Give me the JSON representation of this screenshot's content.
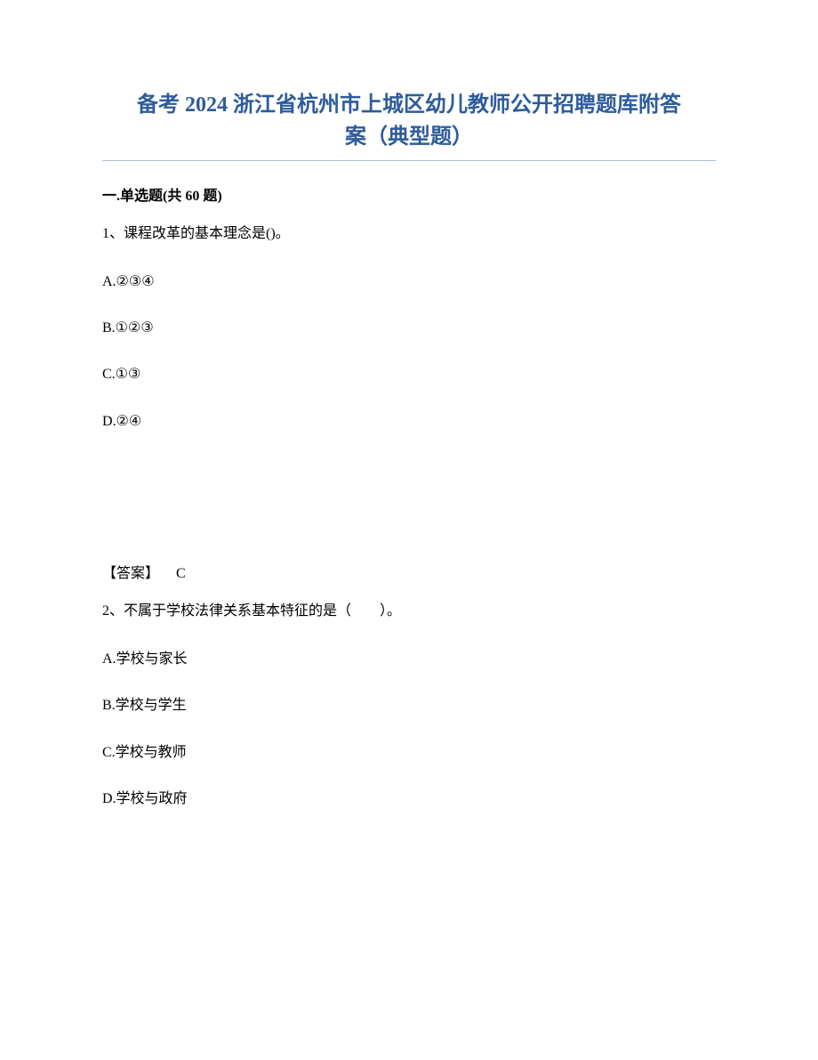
{
  "title": {
    "line1": "备考 2024 浙江省杭州市上城区幼儿教师公开招聘题库附答",
    "line2": "案（典型题）"
  },
  "colors": {
    "title_color": "#2e5c9a",
    "text_color": "#000000",
    "background_color": "#ffffff",
    "divider_color": "#2e5c9a"
  },
  "typography": {
    "title_fontsize": 24,
    "body_fontsize": 16,
    "font_family": "SimSun"
  },
  "section_header": "一.单选题(共 60 题)",
  "questions": [
    {
      "number": "1、",
      "text": "课程改革的基本理念是()。",
      "options": [
        "A.②③④",
        "B.①②③",
        "C.①③",
        "D.②④"
      ],
      "answer_label": "【答案】",
      "answer_value": "C"
    },
    {
      "number": "2、",
      "text": "不属于学校法律关系基本特征的是（　　）。",
      "options": [
        "A.学校与家长",
        "B.学校与学生",
        "C.学校与教师",
        "D.学校与政府"
      ]
    }
  ]
}
